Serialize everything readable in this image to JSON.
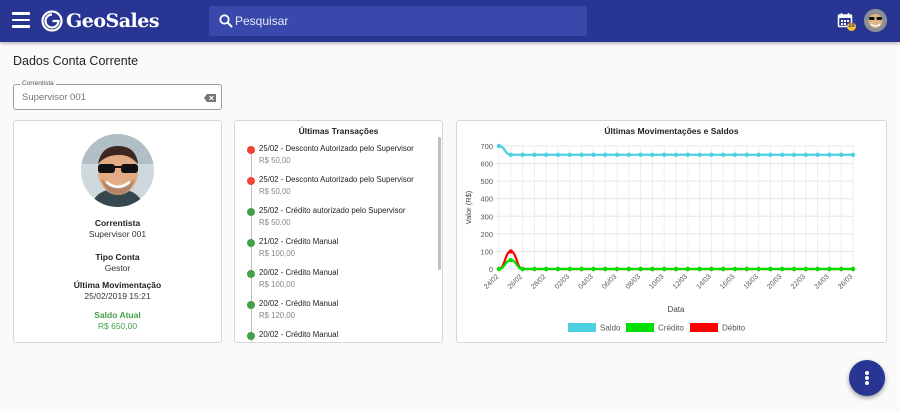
{
  "app": {
    "name": "GeoSales"
  },
  "header": {
    "search_placeholder": "Pesquisar",
    "calendar_badge": "10"
  },
  "page": {
    "title": "Dados Conta Corrente"
  },
  "filter": {
    "label": "Correntista",
    "value": "Supervisor 001"
  },
  "profile": {
    "correntista_label": "Correntista",
    "correntista_value": "Supervisor 001",
    "tipo_label": "Tipo Conta",
    "tipo_value": "Gestor",
    "ultima_label": "Última Movimentação",
    "ultima_value": "25/02/2019 15:21",
    "saldo_label": "Saldo Atual",
    "saldo_value": "R$ 650,00"
  },
  "transactions": {
    "title": "Últimas Transações",
    "items": [
      {
        "title": "25/02 - Desconto Autorizado pelo Supervisor",
        "amount": "R$ 50,00",
        "type": "debit"
      },
      {
        "title": "25/02 - Desconto Autorizado pelo Supervisor",
        "amount": "R$ 50,00",
        "type": "debit"
      },
      {
        "title": "25/02 - Crédito autorizado pelo Supervisor",
        "amount": "R$ 50,00",
        "type": "credit"
      },
      {
        "title": "21/02 - Crédito Manual",
        "amount": "R$ 100,00",
        "type": "credit"
      },
      {
        "title": "20/02 - Crédito Manual",
        "amount": "R$ 100,00",
        "type": "credit"
      },
      {
        "title": "20/02 - Crédito Manual",
        "amount": "R$ 120,00",
        "type": "credit"
      },
      {
        "title": "20/02 - Crédito Manual",
        "amount": "",
        "type": "credit"
      }
    ],
    "colors": {
      "debit": "#f44336",
      "credit": "#43a047"
    }
  },
  "chart_data": {
    "type": "line",
    "title": "Últimas Movimentações e Saldos",
    "xlabel": "Data",
    "ylabel": "Valor (R$)",
    "ylim": [
      0,
      700
    ],
    "yticks": [
      0,
      100,
      200,
      300,
      400,
      500,
      600,
      700
    ],
    "grid": true,
    "legend_position": "bottom",
    "x": [
      "24/02",
      "25/02",
      "26/02",
      "27/02",
      "28/02",
      "01/03",
      "02/03",
      "03/03",
      "04/03",
      "05/03",
      "06/03",
      "07/03",
      "08/03",
      "09/03",
      "10/03",
      "11/03",
      "12/03",
      "13/03",
      "14/03",
      "15/03",
      "16/03",
      "17/03",
      "18/03",
      "19/03",
      "20/03",
      "21/03",
      "22/03",
      "23/03",
      "24/03",
      "25/03",
      "26/03"
    ],
    "xtick_labels": [
      "24/02",
      "26/02",
      "28/02",
      "02/03",
      "04/03",
      "06/03",
      "08/03",
      "10/03",
      "12/03",
      "14/03",
      "16/03",
      "18/03",
      "20/03",
      "22/03",
      "24/03",
      "26/03"
    ],
    "series": [
      {
        "name": "Saldo",
        "color": "#4dd0e1",
        "values": [
          700,
          650,
          650,
          650,
          650,
          650,
          650,
          650,
          650,
          650,
          650,
          650,
          650,
          650,
          650,
          650,
          650,
          650,
          650,
          650,
          650,
          650,
          650,
          650,
          650,
          650,
          650,
          650,
          650,
          650,
          650
        ]
      },
      {
        "name": "Crédito",
        "color": "#00e000",
        "values": [
          0,
          50,
          0,
          0,
          0,
          0,
          0,
          0,
          0,
          0,
          0,
          0,
          0,
          0,
          0,
          0,
          0,
          0,
          0,
          0,
          0,
          0,
          0,
          0,
          0,
          0,
          0,
          0,
          0,
          0,
          0
        ]
      },
      {
        "name": "Débito",
        "color": "#ff0000",
        "values": [
          0,
          100,
          0,
          0,
          0,
          0,
          0,
          0,
          0,
          0,
          0,
          0,
          0,
          0,
          0,
          0,
          0,
          0,
          0,
          0,
          0,
          0,
          0,
          0,
          0,
          0,
          0,
          0,
          0,
          0,
          0
        ]
      }
    ]
  }
}
